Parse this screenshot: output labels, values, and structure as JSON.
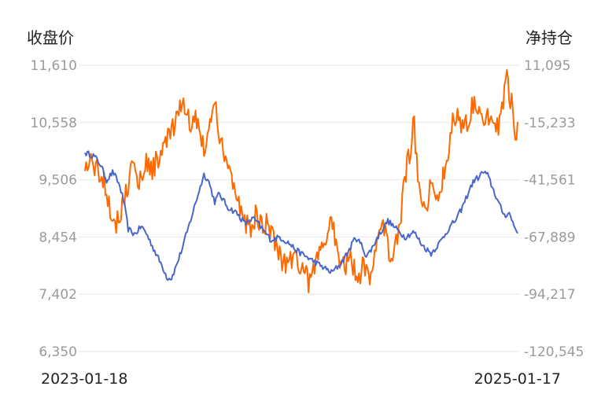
{
  "chart_data": {
    "type": "line",
    "title": "",
    "left_axis_title": "收盘价",
    "right_axis_title": "净持仓",
    "x_start_label": "2023-01-18",
    "x_end_label": "2025-01-17",
    "left_ticks": [
      "11,610",
      "10,558",
      "9,506",
      "8,454",
      "7,402",
      "6,350"
    ],
    "right_ticks": [
      "11,095",
      "-15,233",
      "-41,561",
      "-67,889",
      "-94,217",
      "-120,545"
    ],
    "ylim_left": [
      6350,
      11610
    ],
    "ylim_right": [
      -120545,
      11095
    ],
    "grid": true,
    "colors": {
      "close": "#4a66c8",
      "net": "#ff6a00"
    },
    "series": [
      {
        "name": "收盘价",
        "axis": "left",
        "anchors": [
          [
            0,
            10000
          ],
          [
            0.02,
            9950
          ],
          [
            0.035,
            9800
          ],
          [
            0.05,
            9500
          ],
          [
            0.065,
            9650
          ],
          [
            0.08,
            9400
          ],
          [
            0.09,
            9100
          ],
          [
            0.1,
            8600
          ],
          [
            0.115,
            8500
          ],
          [
            0.13,
            8650
          ],
          [
            0.14,
            8550
          ],
          [
            0.155,
            8300
          ],
          [
            0.17,
            8050
          ],
          [
            0.18,
            7900
          ],
          [
            0.19,
            7700
          ],
          [
            0.2,
            7700
          ],
          [
            0.21,
            7900
          ],
          [
            0.225,
            8250
          ],
          [
            0.24,
            8650
          ],
          [
            0.26,
            9200
          ],
          [
            0.275,
            9600
          ],
          [
            0.285,
            9500
          ],
          [
            0.3,
            9100
          ],
          [
            0.31,
            9250
          ],
          [
            0.33,
            9000
          ],
          [
            0.35,
            8900
          ],
          [
            0.37,
            8700
          ],
          [
            0.39,
            8800
          ],
          [
            0.41,
            8600
          ],
          [
            0.43,
            8400
          ],
          [
            0.45,
            8450
          ],
          [
            0.47,
            8350
          ],
          [
            0.49,
            8200
          ],
          [
            0.51,
            8100
          ],
          [
            0.53,
            8000
          ],
          [
            0.55,
            7900
          ],
          [
            0.57,
            7800
          ],
          [
            0.59,
            7950
          ],
          [
            0.61,
            8200
          ],
          [
            0.625,
            8450
          ],
          [
            0.64,
            8300
          ],
          [
            0.65,
            8100
          ],
          [
            0.66,
            8200
          ],
          [
            0.68,
            8500
          ],
          [
            0.7,
            8750
          ],
          [
            0.72,
            8600
          ],
          [
            0.74,
            8450
          ],
          [
            0.76,
            8550
          ],
          [
            0.78,
            8300
          ],
          [
            0.8,
            8150
          ],
          [
            0.82,
            8350
          ],
          [
            0.84,
            8600
          ],
          [
            0.86,
            8800
          ],
          [
            0.875,
            9050
          ],
          [
            0.89,
            9350
          ],
          [
            0.9,
            9500
          ],
          [
            0.91,
            9550
          ],
          [
            0.92,
            9650
          ],
          [
            0.93,
            9600
          ],
          [
            0.94,
            9400
          ],
          [
            0.95,
            9200
          ],
          [
            0.96,
            9000
          ],
          [
            0.97,
            8850
          ],
          [
            0.98,
            8900
          ],
          [
            0.99,
            8700
          ],
          [
            1.0,
            8520
          ]
        ]
      },
      {
        "name": "净持仓",
        "axis": "right",
        "anchors": [
          [
            0,
            -37500
          ],
          [
            0.015,
            -32000
          ],
          [
            0.03,
            -38000
          ],
          [
            0.045,
            -42000
          ],
          [
            0.06,
            -55000
          ],
          [
            0.07,
            -63000
          ],
          [
            0.08,
            -58000
          ],
          [
            0.095,
            -47000
          ],
          [
            0.11,
            -35000
          ],
          [
            0.125,
            -43000
          ],
          [
            0.14,
            -33000
          ],
          [
            0.155,
            -37000
          ],
          [
            0.17,
            -31000
          ],
          [
            0.185,
            -25000
          ],
          [
            0.2,
            -20000
          ],
          [
            0.215,
            -14000
          ],
          [
            0.225,
            -5000
          ],
          [
            0.235,
            -10000
          ],
          [
            0.245,
            -18000
          ],
          [
            0.26,
            -12000
          ],
          [
            0.27,
            -23000
          ],
          [
            0.28,
            -30000
          ],
          [
            0.29,
            -12000
          ],
          [
            0.3,
            -7000
          ],
          [
            0.31,
            -20000
          ],
          [
            0.325,
            -30000
          ],
          [
            0.34,
            -42000
          ],
          [
            0.355,
            -52000
          ],
          [
            0.365,
            -60000
          ],
          [
            0.38,
            -65000
          ],
          [
            0.395,
            -58000
          ],
          [
            0.41,
            -63000
          ],
          [
            0.425,
            -62000
          ],
          [
            0.44,
            -70000
          ],
          [
            0.455,
            -78000
          ],
          [
            0.47,
            -80000
          ],
          [
            0.485,
            -75000
          ],
          [
            0.5,
            -82000
          ],
          [
            0.51,
            -84000
          ],
          [
            0.52,
            -90000
          ],
          [
            0.53,
            -82000
          ],
          [
            0.545,
            -75000
          ],
          [
            0.56,
            -66000
          ],
          [
            0.57,
            -60000
          ],
          [
            0.585,
            -75000
          ],
          [
            0.6,
            -82000
          ],
          [
            0.615,
            -78000
          ],
          [
            0.63,
            -87000
          ],
          [
            0.645,
            -80000
          ],
          [
            0.66,
            -85000
          ],
          [
            0.675,
            -72000
          ],
          [
            0.69,
            -62000
          ],
          [
            0.7,
            -72000
          ],
          [
            0.71,
            -80000
          ],
          [
            0.72,
            -68000
          ],
          [
            0.73,
            -58000
          ],
          [
            0.74,
            -40000
          ],
          [
            0.75,
            -30000
          ],
          [
            0.76,
            -15000
          ],
          [
            0.77,
            -40000
          ],
          [
            0.785,
            -55000
          ],
          [
            0.8,
            -45000
          ],
          [
            0.815,
            -50000
          ],
          [
            0.83,
            -38000
          ],
          [
            0.84,
            -28000
          ],
          [
            0.85,
            -15000
          ],
          [
            0.86,
            -10000
          ],
          [
            0.875,
            -18000
          ],
          [
            0.89,
            -12000
          ],
          [
            0.9,
            -3000
          ],
          [
            0.91,
            -8000
          ],
          [
            0.92,
            -16000
          ],
          [
            0.935,
            -12000
          ],
          [
            0.95,
            -20000
          ],
          [
            0.965,
            -8000
          ],
          [
            0.975,
            5000
          ],
          [
            0.985,
            -5000
          ],
          [
            0.995,
            -20000
          ],
          [
            1.0,
            -15000
          ]
        ]
      }
    ]
  }
}
